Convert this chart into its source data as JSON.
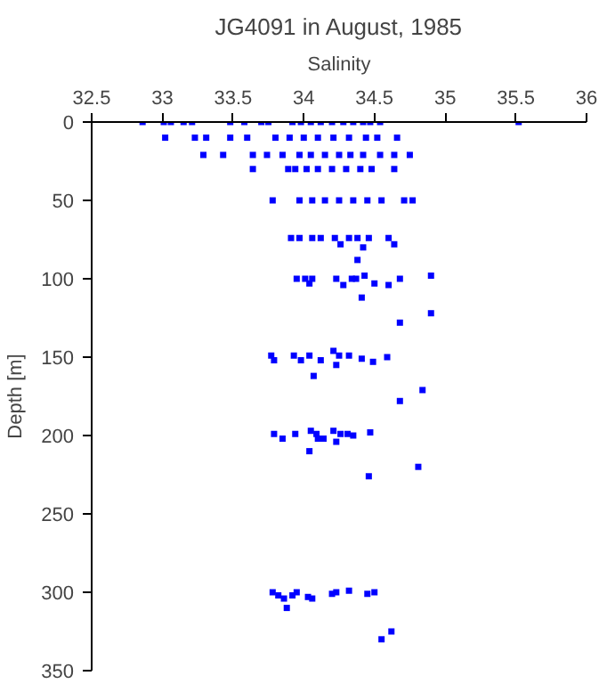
{
  "chart_data": {
    "type": "scatter",
    "title": "JG4091 in August, 1985",
    "xlabel": "Salinity",
    "ylabel": "Depth [m]",
    "marker": "square",
    "grid": false,
    "xlim": [
      32.5,
      36
    ],
    "xticks": [
      32.5,
      33,
      33.5,
      34,
      34.5,
      35,
      35.5,
      36
    ],
    "ylim": [
      350,
      0
    ],
    "yticks": [
      0,
      50,
      100,
      150,
      200,
      250,
      300,
      350
    ],
    "series": [
      {
        "color": "#0000ff",
        "x": [
          32.86,
          33.01,
          33.06,
          33.15,
          33.21,
          33.48,
          33.58,
          33.7,
          33.75,
          33.92,
          33.98,
          34.05,
          34.12,
          34.2,
          34.28,
          34.35,
          34.42,
          34.47,
          34.54,
          35.52,
          33.02,
          33.23,
          33.31,
          33.48,
          33.6,
          33.8,
          33.9,
          34.0,
          34.1,
          34.21,
          34.32,
          34.44,
          34.52,
          34.66,
          33.29,
          33.43,
          33.64,
          33.74,
          33.85,
          33.97,
          34.05,
          34.15,
          34.25,
          34.33,
          34.42,
          34.54,
          34.64,
          34.75,
          33.64,
          33.89,
          33.94,
          34.02,
          34.1,
          34.2,
          34.3,
          34.4,
          34.48,
          34.64,
          33.78,
          33.97,
          34.06,
          34.15,
          34.25,
          34.35,
          34.45,
          34.55,
          34.71,
          34.77,
          33.91,
          33.97,
          34.06,
          34.12,
          34.22,
          34.26,
          34.32,
          34.38,
          34.42,
          34.46,
          34.6,
          34.64,
          34.38,
          33.95,
          34.01,
          34.04,
          34.06,
          34.23,
          34.28,
          34.34,
          34.37,
          34.43,
          34.5,
          34.6,
          34.68,
          34.9,
          34.41,
          34.9,
          34.68,
          33.77,
          33.79,
          33.93,
          33.98,
          34.04,
          34.12,
          34.21,
          34.25,
          34.32,
          34.41,
          34.49,
          34.59,
          34.23,
          34.07,
          34.84,
          34.68,
          33.79,
          33.85,
          33.94,
          34.05,
          34.09,
          34.1,
          34.14,
          34.21,
          34.23,
          34.26,
          34.31,
          34.35,
          34.47,
          34.04,
          34.81,
          34.46,
          33.78,
          33.82,
          33.86,
          33.92,
          33.95,
          34.03,
          34.06,
          34.2,
          34.23,
          34.32,
          34.45,
          34.5,
          33.88,
          34.62,
          34.55
        ],
        "values": [
          0,
          0,
          0,
          0,
          0,
          0,
          0,
          0,
          0,
          0,
          0,
          0,
          0,
          0,
          0,
          0,
          0,
          0,
          0,
          0,
          10,
          10,
          10,
          10,
          10,
          10,
          10,
          10,
          10,
          10,
          10,
          10,
          10,
          10,
          21,
          21,
          21,
          21,
          21,
          21,
          21,
          21,
          21,
          21,
          21,
          21,
          21,
          21,
          30,
          30,
          30,
          30,
          30,
          30,
          30,
          30,
          30,
          30,
          50,
          50,
          50,
          50,
          50,
          50,
          50,
          50,
          50,
          50,
          74,
          74,
          74,
          74,
          74,
          78,
          74,
          74,
          80,
          74,
          74,
          78,
          88,
          100,
          100,
          103,
          100,
          100,
          104,
          100,
          100,
          98,
          103,
          104,
          100,
          98,
          112,
          122,
          128,
          149,
          152,
          149,
          152,
          149,
          152,
          146,
          149,
          149,
          151,
          153,
          150,
          155,
          162,
          171,
          178,
          199,
          202,
          199,
          197,
          199,
          202,
          202,
          197,
          204,
          199,
          199,
          200,
          198,
          210,
          220,
          226,
          300,
          302,
          304,
          302,
          300,
          303,
          304,
          301,
          300,
          299,
          301,
          300,
          310,
          325,
          330
        ]
      }
    ]
  }
}
